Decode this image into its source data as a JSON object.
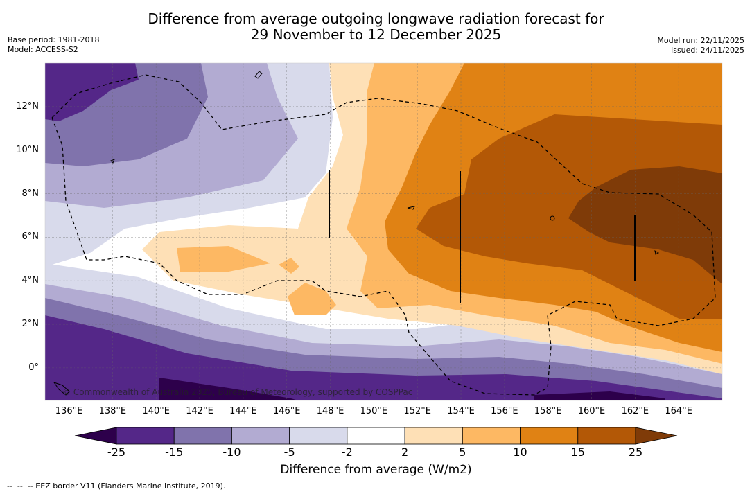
{
  "title": {
    "line1": "Difference from average outgoing longwave radiation forecast for",
    "line2": "29 November to 12 December 2025"
  },
  "meta_left": {
    "base_period": "Base period: 1981-2018",
    "model": "Model: ACCESS-S2"
  },
  "meta_right": {
    "model_run": "Model run: 22/11/2025",
    "issued": "Issued: 24/11/2025"
  },
  "map": {
    "lon_labels": [
      "136°E",
      "138°E",
      "140°E",
      "142°E",
      "144°E",
      "146°E",
      "148°E",
      "150°E",
      "152°E",
      "154°E",
      "156°E",
      "158°E",
      "160°E",
      "162°E",
      "164°E"
    ],
    "lon_values": [
      136,
      138,
      140,
      142,
      144,
      146,
      148,
      150,
      152,
      154,
      156,
      158,
      160,
      162,
      164
    ],
    "lat_labels": [
      "12°N",
      "10°N",
      "8°N",
      "6°N",
      "4°N",
      "2°N",
      "0°"
    ],
    "lat_values": [
      12,
      10,
      8,
      6,
      4,
      2,
      0
    ],
    "lon_range": [
      134.9,
      166.0
    ],
    "lat_range": [
      -1.5,
      14.0
    ],
    "credit": "© Commonwealth of Australia 2025, Bureau of Meteorology, supported by COSPPac"
  },
  "colorbar": {
    "labels": [
      "-25",
      "-15",
      "-10",
      "-5",
      "-2",
      "2",
      "5",
      "10",
      "15",
      "25"
    ],
    "colors": [
      "#2d004b",
      "#542788",
      "#8073ac",
      "#b2abd2",
      "#d8daeb",
      "#ffffff",
      "#fee0b6",
      "#fdb863",
      "#e08214",
      "#b35806",
      "#7f3b08"
    ],
    "title": "Difference from average (W/m2)"
  },
  "footer": "--  --  -- EEZ border V11 (Flanders Marine Institute, 2019)."
}
